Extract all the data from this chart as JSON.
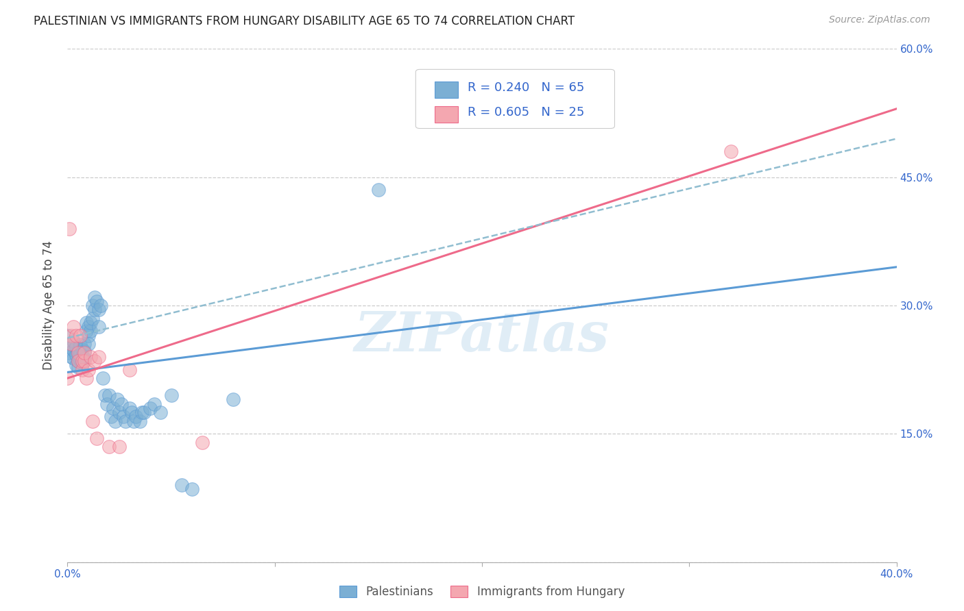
{
  "title": "PALESTINIAN VS IMMIGRANTS FROM HUNGARY DISABILITY AGE 65 TO 74 CORRELATION CHART",
  "source": "Source: ZipAtlas.com",
  "ylabel": "Disability Age 65 to 74",
  "x_min": 0.0,
  "x_max": 0.4,
  "y_min": 0.0,
  "y_max": 0.6,
  "x_ticks": [
    0.0,
    0.1,
    0.2,
    0.3,
    0.4
  ],
  "x_tick_labels": [
    "0.0%",
    "",
    "",
    "",
    "40.0%"
  ],
  "y_ticks": [
    0.0,
    0.15,
    0.3,
    0.45,
    0.6
  ],
  "y_tick_labels_right": [
    "",
    "15.0%",
    "30.0%",
    "45.0%",
    "60.0%"
  ],
  "palestinians_color": "#7bafd4",
  "hungary_color": "#f4a7b0",
  "line_blue_color": "#5b9bd5",
  "line_pink_color": "#ee6a8a",
  "line_dashed_color": "#90bdd0",
  "watermark": "ZIPatlas",
  "legend_r1": "R = 0.240",
  "legend_n1": "N = 65",
  "legend_r2": "R = 0.605",
  "legend_n2": "N = 25",
  "palestinians_label": "Palestinians",
  "hungary_label": "Immigrants from Hungary",
  "palestinians_x": [
    0.0,
    0.001,
    0.001,
    0.002,
    0.002,
    0.003,
    0.003,
    0.003,
    0.004,
    0.004,
    0.004,
    0.005,
    0.005,
    0.005,
    0.006,
    0.006,
    0.006,
    0.007,
    0.007,
    0.007,
    0.008,
    0.008,
    0.008,
    0.009,
    0.009,
    0.01,
    0.01,
    0.01,
    0.011,
    0.011,
    0.012,
    0.012,
    0.013,
    0.013,
    0.014,
    0.015,
    0.015,
    0.016,
    0.017,
    0.018,
    0.019,
    0.02,
    0.021,
    0.022,
    0.023,
    0.024,
    0.025,
    0.026,
    0.027,
    0.028,
    0.03,
    0.031,
    0.032,
    0.033,
    0.035,
    0.036,
    0.037,
    0.04,
    0.042,
    0.045,
    0.05,
    0.055,
    0.06,
    0.08,
    0.15
  ],
  "palestinians_y": [
    0.265,
    0.245,
    0.255,
    0.24,
    0.25,
    0.238,
    0.248,
    0.258,
    0.23,
    0.242,
    0.252,
    0.228,
    0.235,
    0.246,
    0.236,
    0.244,
    0.254,
    0.232,
    0.241,
    0.249,
    0.238,
    0.246,
    0.255,
    0.27,
    0.28,
    0.265,
    0.255,
    0.275,
    0.27,
    0.28,
    0.285,
    0.3,
    0.295,
    0.31,
    0.305,
    0.295,
    0.275,
    0.3,
    0.215,
    0.195,
    0.185,
    0.195,
    0.17,
    0.18,
    0.165,
    0.19,
    0.175,
    0.185,
    0.17,
    0.165,
    0.18,
    0.175,
    0.165,
    0.17,
    0.165,
    0.175,
    0.175,
    0.18,
    0.185,
    0.175,
    0.195,
    0.09,
    0.085,
    0.19,
    0.435
  ],
  "hungary_x": [
    0.0,
    0.001,
    0.002,
    0.002,
    0.003,
    0.004,
    0.005,
    0.005,
    0.006,
    0.007,
    0.007,
    0.008,
    0.008,
    0.009,
    0.01,
    0.011,
    0.012,
    0.013,
    0.014,
    0.015,
    0.02,
    0.025,
    0.03,
    0.065,
    0.32
  ],
  "hungary_y": [
    0.215,
    0.39,
    0.265,
    0.255,
    0.275,
    0.265,
    0.245,
    0.235,
    0.265,
    0.225,
    0.235,
    0.235,
    0.245,
    0.215,
    0.225,
    0.24,
    0.165,
    0.235,
    0.145,
    0.24,
    0.135,
    0.135,
    0.225,
    0.14,
    0.48
  ],
  "blue_line_x": [
    0.0,
    0.4
  ],
  "blue_line_y": [
    0.222,
    0.345
  ],
  "pink_line_x": [
    0.0,
    0.4
  ],
  "pink_line_y": [
    0.215,
    0.53
  ],
  "dashed_line_x": [
    0.0,
    0.4
  ],
  "dashed_line_y": [
    0.262,
    0.495
  ]
}
